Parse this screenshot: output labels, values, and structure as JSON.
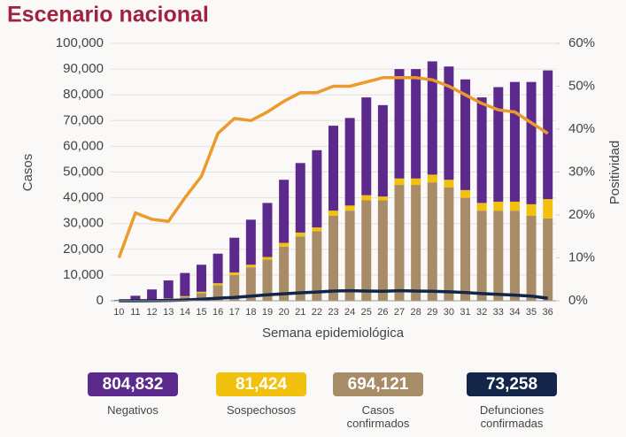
{
  "chart_data": {
    "type": "bar",
    "stacked": true,
    "title": "Escenario nacional",
    "x_label": "Semana epidemiológica",
    "y_label": "Casos",
    "y2_label": "Positividad",
    "categories": [
      "10",
      "11",
      "12",
      "13",
      "14",
      "15",
      "16",
      "17",
      "18",
      "19",
      "20",
      "21",
      "22",
      "23",
      "24",
      "25",
      "26",
      "27",
      "28",
      "29",
      "30",
      "31",
      "32",
      "33",
      "34",
      "35",
      "36"
    ],
    "ylim": [
      0,
      100000
    ],
    "yticks": [
      {
        "value": 0,
        "label": "0"
      },
      {
        "value": 10000,
        "label": "10,000"
      },
      {
        "value": 20000,
        "label": "20,000"
      },
      {
        "value": 30000,
        "label": "30,000"
      },
      {
        "value": 40000,
        "label": "40,000"
      },
      {
        "value": 50000,
        "label": "50,000"
      },
      {
        "value": 60000,
        "label": "60,000"
      },
      {
        "value": 70000,
        "label": "70,000"
      },
      {
        "value": 80000,
        "label": "80,000"
      },
      {
        "value": 90000,
        "label": "90,000"
      },
      {
        "value": 100000,
        "label": "100,000"
      }
    ],
    "y2lim": [
      0,
      60
    ],
    "y2ticks": [
      {
        "value": 0,
        "label": "0%"
      },
      {
        "value": 10,
        "label": "10%"
      },
      {
        "value": 20,
        "label": "20%"
      },
      {
        "value": 30,
        "label": "30%"
      },
      {
        "value": 40,
        "label": "40%"
      },
      {
        "value": 50,
        "label": "50%"
      },
      {
        "value": 60,
        "label": "60%"
      }
    ],
    "series": [
      {
        "name": "Casos confirmados",
        "type": "bar",
        "color": "#a88b67",
        "legend_value": "694,121",
        "values": [
          10,
          100,
          300,
          700,
          1500,
          3000,
          6000,
          10000,
          13000,
          16000,
          21000,
          25000,
          27000,
          33000,
          35000,
          39000,
          39000,
          45000,
          45000,
          46000,
          44000,
          40000,
          35000,
          35000,
          35000,
          33000,
          32000
        ]
      },
      {
        "name": "Sospechosos",
        "type": "bar",
        "color": "#f2c10e",
        "legend_value": "81,424",
        "values": [
          0,
          50,
          100,
          200,
          300,
          500,
          800,
          1000,
          1000,
          1000,
          1500,
          1500,
          1500,
          2000,
          2000,
          2000,
          1500,
          2500,
          2500,
          3000,
          3000,
          3000,
          3000,
          3500,
          3500,
          4500,
          7500
        ]
      },
      {
        "name": "Negativos",
        "type": "bar",
        "color": "#5c2a8c",
        "legend_value": "804,832",
        "values": [
          300,
          1800,
          4000,
          7000,
          9000,
          10500,
          11500,
          13500,
          17500,
          21000,
          24500,
          27000,
          30000,
          33000,
          34000,
          38000,
          35500,
          42500,
          42500,
          44000,
          44000,
          43000,
          41000,
          44500,
          46500,
          47500,
          50000
        ]
      },
      {
        "type": "line",
        "axis": "y2",
        "color": "#ec9a2b",
        "values": [
          10,
          20.5,
          19,
          18.5,
          24,
          29,
          39,
          42.5,
          42,
          44,
          46.5,
          48.5,
          48.5,
          50,
          50,
          51,
          52,
          52,
          52,
          51.5,
          50,
          48,
          46,
          44.5,
          44,
          41.5,
          39
        ]
      },
      {
        "name": "Defunciones confirmadas",
        "type": "line",
        "color": "#13264a",
        "legend_value": "73,258",
        "values": [
          0,
          10,
          50,
          150,
          300,
          600,
          1000,
          1300,
          1800,
          2300,
          2700,
          3100,
          3400,
          3800,
          3900,
          3800,
          3700,
          3900,
          3800,
          3700,
          3500,
          3200,
          2800,
          2500,
          2200,
          1800,
          1000
        ]
      }
    ],
    "legend_order": [
      2,
      1,
      0,
      4
    ]
  }
}
